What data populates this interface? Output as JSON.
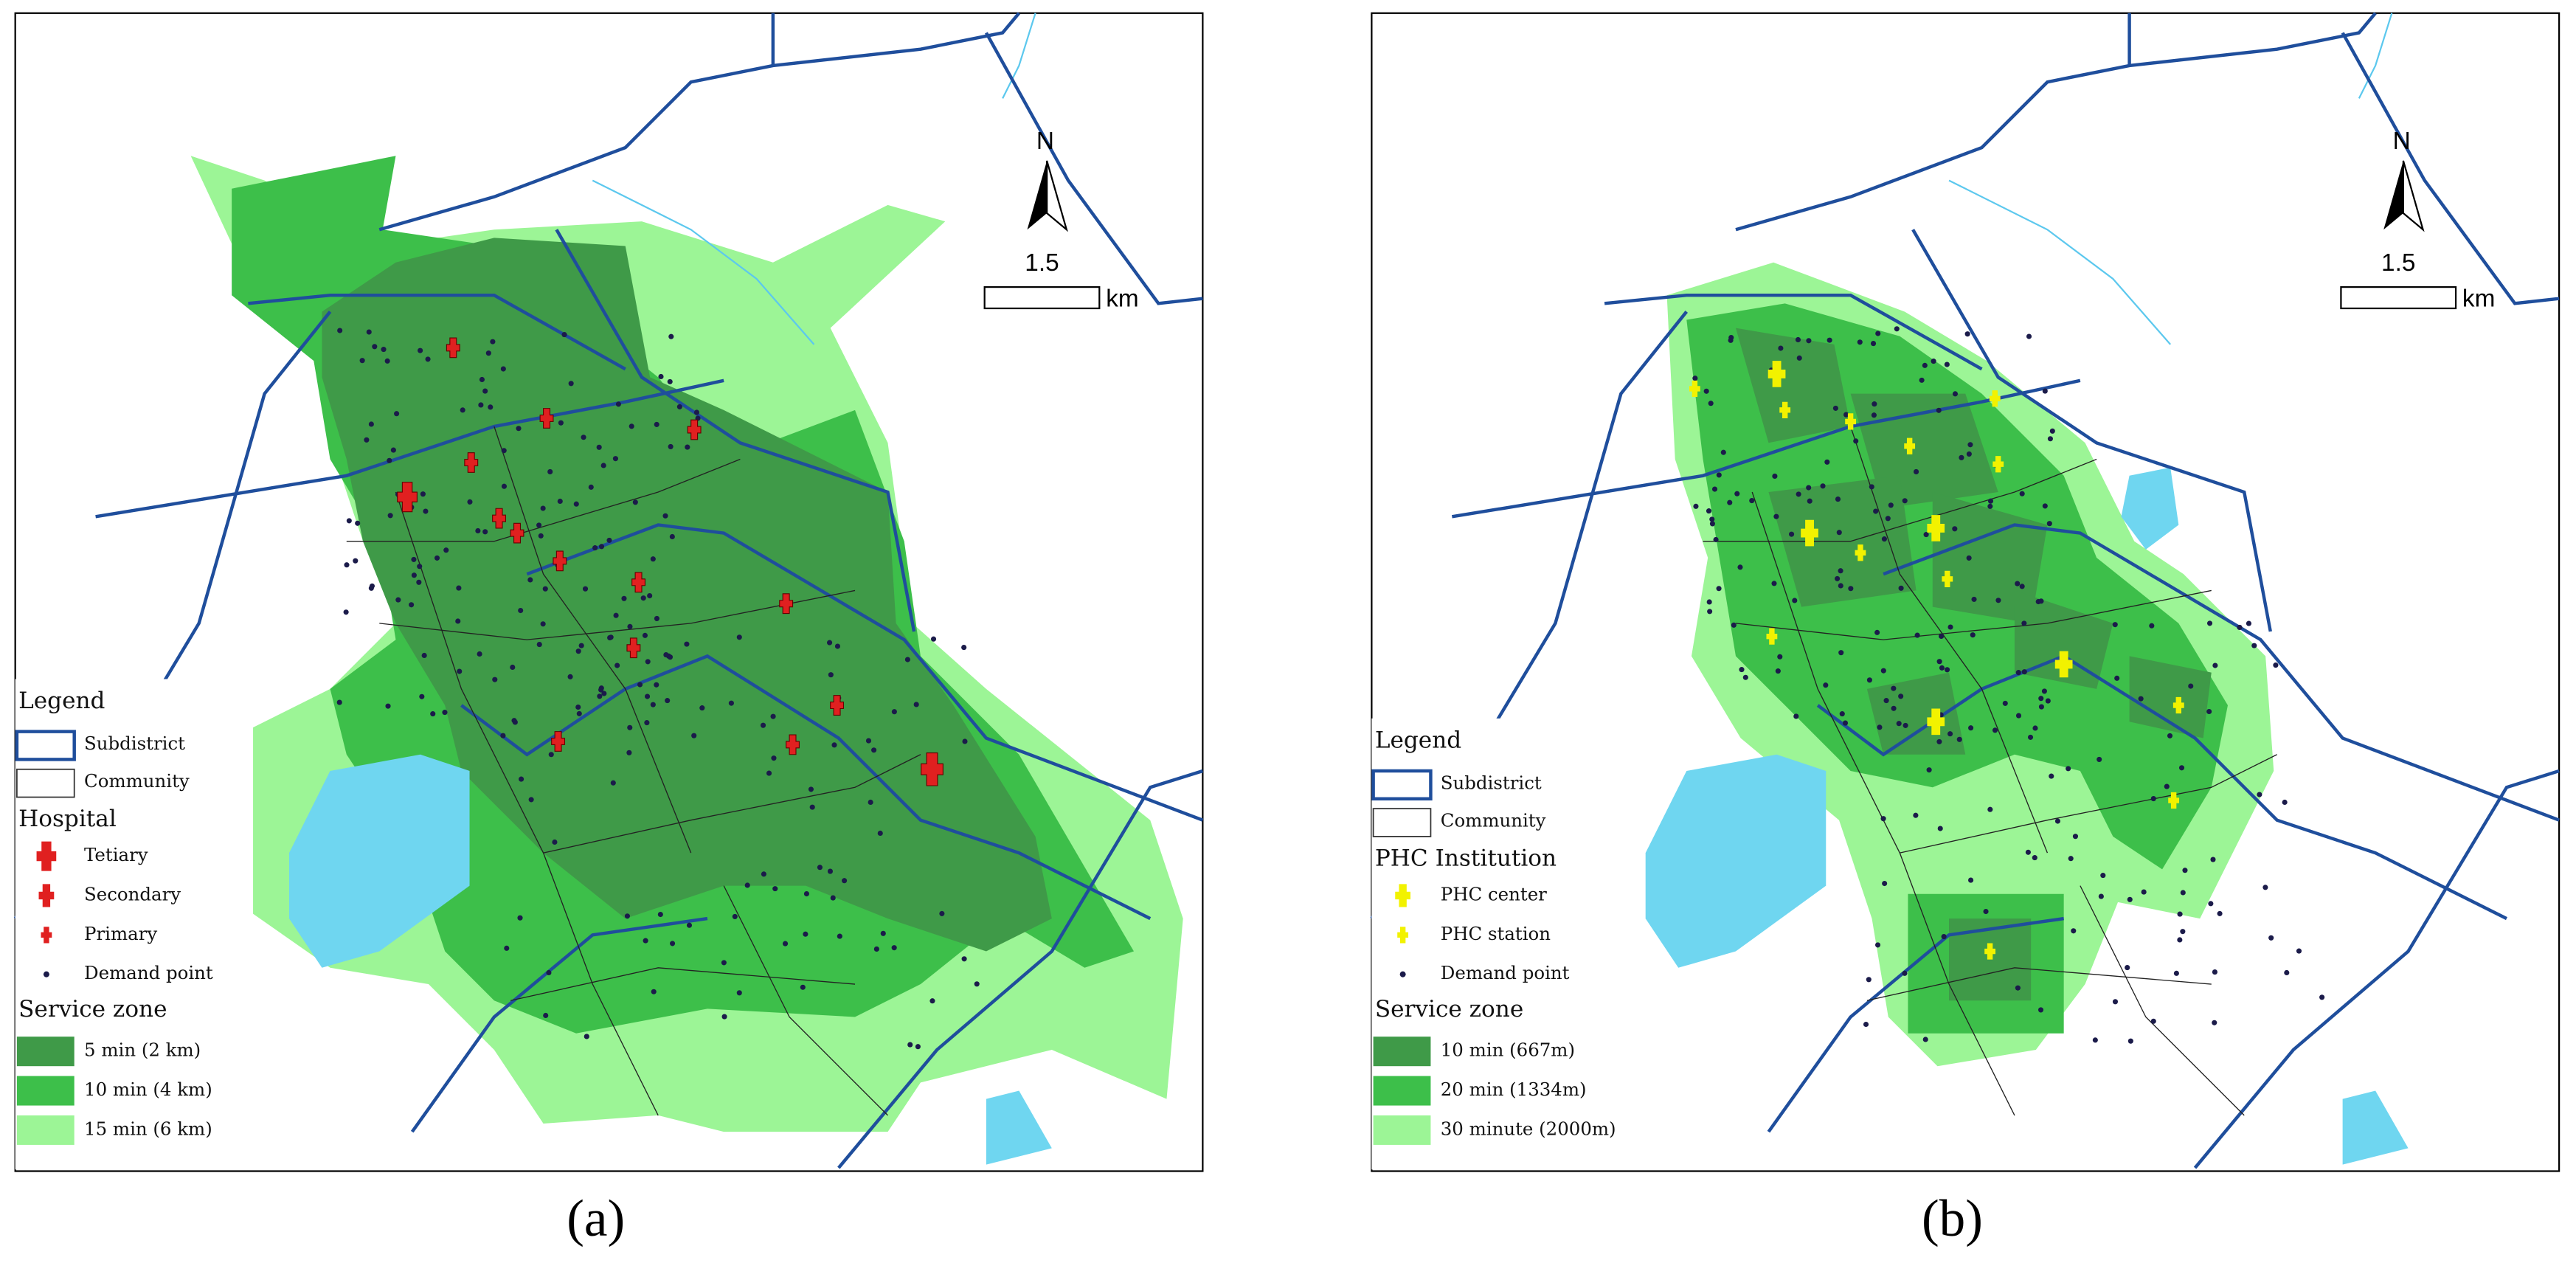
{
  "panels": [
    {
      "caption": "(a)",
      "north": "N",
      "scale": {
        "label": "1.5",
        "unit": "km"
      },
      "legend": {
        "title": "Legend",
        "boundaries": [
          "Subdistrict",
          "Community"
        ],
        "facility": {
          "title": "Hospital",
          "items": [
            "Tetiary",
            "Secondary",
            "Primary",
            "Demand point"
          ]
        },
        "zones": {
          "title": "Service zone",
          "items": [
            "5 min (2 km)",
            "10 min (4 km)",
            "15 min (6 km)"
          ]
        }
      }
    },
    {
      "caption": "(b)",
      "north": "N",
      "scale": {
        "label": "1.5",
        "unit": "km"
      },
      "legend": {
        "title": "Legend",
        "boundaries": [
          "Subdistrict",
          "Community"
        ],
        "facility": {
          "title": "PHC Institution",
          "items": [
            "PHC center",
            "PHC station",
            "Demand point"
          ]
        },
        "zones": {
          "title": "Service zone",
          "items": [
            "10 min (667m)",
            "20 min (1334m)",
            "30 minute (2000m)"
          ]
        }
      }
    }
  ]
}
